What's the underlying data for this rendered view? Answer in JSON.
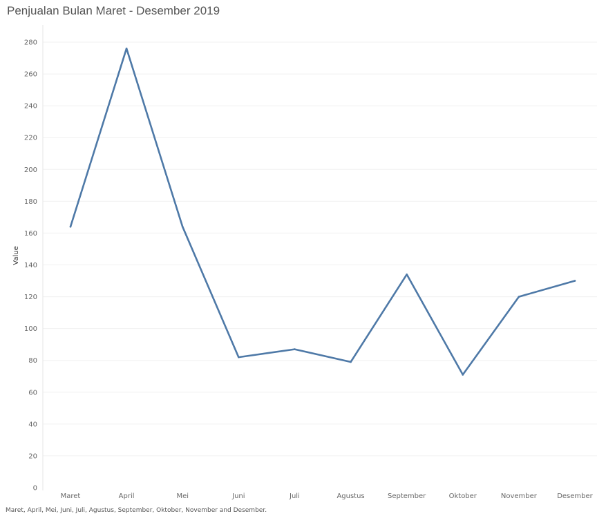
{
  "title": "Penjualan Bulan Maret - Desember 2019",
  "caption": "Maret, April, Mei, Juni, Juli, Agustus, September, Oktober, November and Desember.",
  "colors": {
    "line": "#4e79a7",
    "grid": "#f0f0f0",
    "axis_text": "#666666"
  },
  "chart_data": {
    "type": "line",
    "categories": [
      "Maret",
      "April",
      "Mei",
      "Juni",
      "Juli",
      "Agustus",
      "September",
      "Oktober",
      "November",
      "Desember"
    ],
    "series": [
      {
        "values": [
          164,
          276,
          164,
          82,
          87,
          79,
          134,
          71,
          120,
          130
        ]
      }
    ],
    "xlabel": "",
    "ylabel": "Value",
    "ylim": [
      0,
      280
    ],
    "yticks": [
      0,
      20,
      40,
      60,
      80,
      100,
      120,
      140,
      160,
      180,
      200,
      220,
      240,
      260,
      280
    ],
    "grid": true,
    "legend": "none"
  }
}
